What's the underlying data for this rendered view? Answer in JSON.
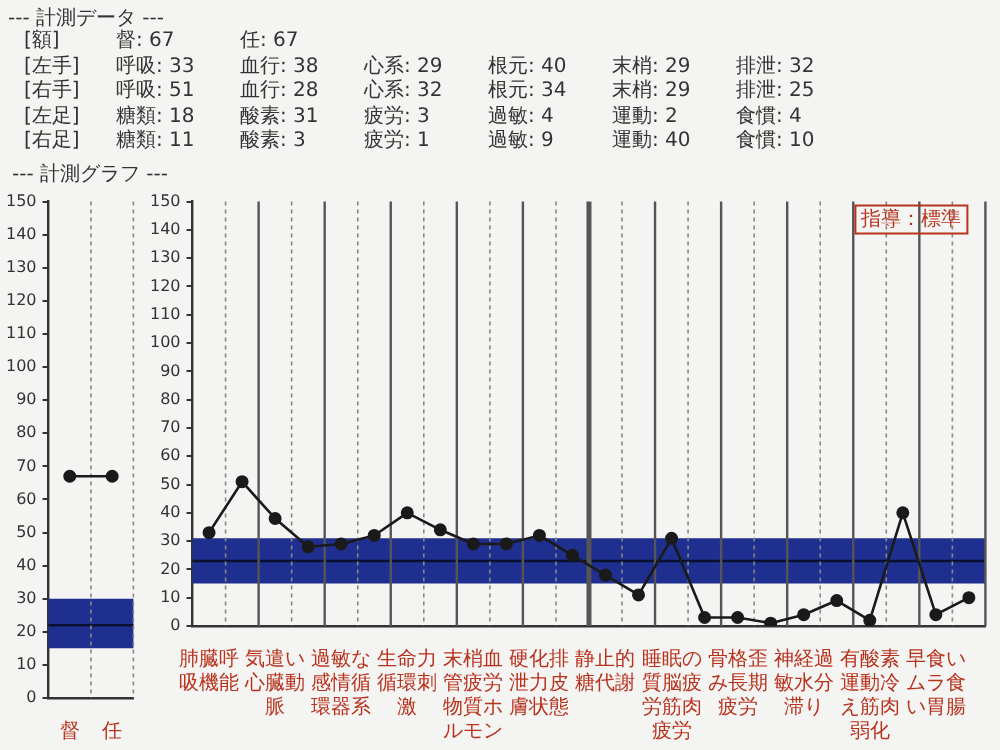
{
  "chart_data": [
    {
      "type": "other",
      "title": "--- 計測データ ---",
      "annotations": [
        "[額]  督: 67  任: 67",
        "[左手]  呼吸: 33  血行: 38  心系: 29  根元: 40  末梢: 29  排泄: 32",
        "[右手]  呼吸: 51  血行: 28  心系: 32  根元: 34  末梢: 29  排泄: 25",
        "[左足]  糖類: 18  酸素: 31  疲労: 3  過敏: 4  運動: 2  食慣: 4",
        "[右足]  糖類: 11  酸素: 3  疲労: 1  過敏: 9  運動: 40  食慣: 10"
      ]
    },
    {
      "type": "line",
      "title": "--- 計測グラフ ---",
      "categories": [
        "督",
        "任"
      ],
      "values": [
        67,
        67
      ],
      "color": "#1a1a1a",
      "marker": "circle",
      "grid": "x",
      "ylim": [
        0,
        150
      ],
      "yticks": [
        0,
        10,
        20,
        30,
        40,
        50,
        60,
        70,
        80,
        90,
        100,
        110,
        120,
        130,
        140,
        150
      ],
      "bands": [
        {
          "axis": "y",
          "from": 15,
          "to": 30,
          "color": "#1f2f8f"
        }
      ],
      "ref_lines": [
        {
          "axis": "y",
          "value": 22,
          "color": "#0a1030"
        }
      ]
    },
    {
      "type": "line",
      "categories": [
        "肺臓呼吸機能",
        null,
        "気遣い心臓動脈",
        null,
        "過敏な感情循環器系",
        null,
        "生命力循環刺激",
        null,
        "末梢血管疲労物質ホルモン",
        null,
        "硬化排泄力皮膚状態",
        null,
        "静止的糖代謝",
        null,
        "睡眠の質脳疲労筋肉疲労",
        null,
        "骨格歪み長期疲労",
        null,
        "神経過敏水分滞り",
        null,
        "有酸素運動冷え筋肉弱化",
        null,
        "早食いムラ食い胃腸",
        null
      ],
      "values": [
        33,
        51,
        38,
        28,
        29,
        32,
        40,
        34,
        29,
        29,
        32,
        25,
        18,
        11,
        31,
        3,
        3,
        1,
        4,
        9,
        2,
        40,
        4,
        10
      ],
      "color": "#1a1a1a",
      "marker": "circle",
      "grid": "x",
      "ylim": [
        0,
        150
      ],
      "yticks": [
        0,
        10,
        20,
        30,
        40,
        50,
        60,
        70,
        80,
        90,
        100,
        110,
        120,
        130,
        140,
        150
      ],
      "bands": [
        {
          "axis": "y",
          "from": 15,
          "to": 31,
          "color": "#1f2f8f"
        }
      ],
      "ref_lines": [
        {
          "axis": "y",
          "value": 23,
          "color": "#0a1030"
        }
      ],
      "annotations": [
        "指導：標準"
      ]
    }
  ]
}
